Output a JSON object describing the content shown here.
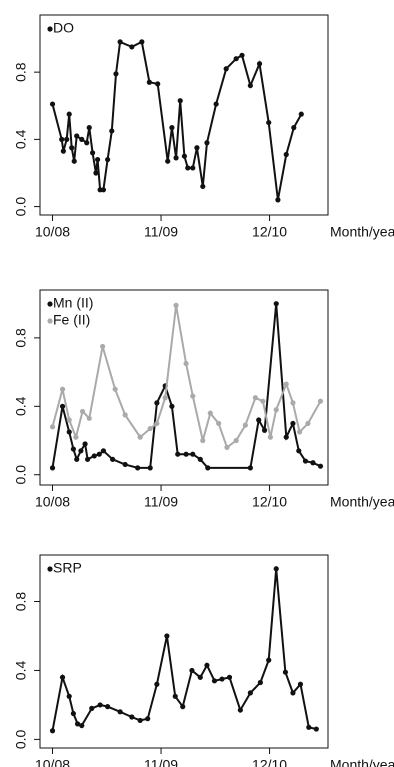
{
  "chart_data": [
    {
      "type": "line",
      "xlabel": "Month/year",
      "legend": "top-left",
      "xlim": [
        -1.5,
        33
      ],
      "xticks": [
        {
          "value": 0,
          "label": "10/08"
        },
        {
          "value": 13,
          "label": "11/09"
        },
        {
          "value": 26,
          "label": "12/10"
        }
      ],
      "ylim": [
        -0.05,
        1.14
      ],
      "yticks": [
        {
          "value": 0,
          "label": "0.0"
        },
        0.4,
        0.8
      ],
      "series": [
        {
          "name": "DO",
          "color": "#111111",
          "x": [
            0,
            1.1,
            1.3,
            1.7,
            2.0,
            2.3,
            2.6,
            2.9,
            3.5,
            4.1,
            4.4,
            4.8,
            5.2,
            5.4,
            5.7,
            6.1,
            6.6,
            7.1,
            7.6,
            8.1,
            9.5,
            10.7,
            11.6,
            12.6,
            13.8,
            14.3,
            14.8,
            15.3,
            15.8,
            16.2,
            16.8,
            17.3,
            18.0,
            18.5,
            19.6,
            20.8,
            22.0,
            22.7,
            23.7,
            24.8,
            25.9,
            27.0,
            28.0,
            28.9,
            29.8
          ],
          "values": [
            0.61,
            0.4,
            0.33,
            0.4,
            0.55,
            0.35,
            0.27,
            0.42,
            0.4,
            0.38,
            0.47,
            0.32,
            0.2,
            0.28,
            0.1,
            0.1,
            0.28,
            0.45,
            0.79,
            0.98,
            0.95,
            0.98,
            0.74,
            0.73,
            0.27,
            0.47,
            0.29,
            0.63,
            0.3,
            0.23,
            0.23,
            0.35,
            0.12,
            0.38,
            0.61,
            0.82,
            0.88,
            0.9,
            0.72,
            0.85,
            0.5,
            0.04,
            0.31,
            0.47,
            0.55
          ]
        }
      ]
    },
    {
      "type": "line",
      "xlabel": "Month/year",
      "legend": "top-left",
      "xlim": [
        -1.5,
        33
      ],
      "xticks": [
        {
          "value": 0,
          "label": "10/08"
        },
        {
          "value": 13,
          "label": "11/09"
        },
        {
          "value": 26,
          "label": "12/10"
        }
      ],
      "ylim": [
        -0.06,
        1.08
      ],
      "yticks": [
        {
          "value": 0,
          "label": "0.0"
        },
        0.4,
        0.8
      ],
      "series": [
        {
          "name": "Mn (II)",
          "color": "#111111",
          "x": [
            0,
            1.2,
            2.0,
            2.5,
            2.9,
            3.4,
            3.9,
            4.2,
            5.0,
            5.6,
            6.1,
            7.2,
            8.7,
            10.2,
            11.7,
            12.5,
            13.5,
            14.3,
            15.0,
            16.0,
            16.8,
            17.7,
            18.6,
            23.7,
            24.7,
            25.4,
            26.8,
            28.0,
            28.8,
            29.5,
            30.3,
            31.2,
            32.1
          ],
          "values": [
            0.04,
            0.4,
            0.25,
            0.15,
            0.09,
            0.14,
            0.18,
            0.09,
            0.11,
            0.12,
            0.14,
            0.09,
            0.06,
            0.04,
            0.04,
            0.42,
            0.52,
            0.4,
            0.12,
            0.12,
            0.12,
            0.09,
            0.04,
            0.04,
            0.32,
            0.26,
            1.0,
            0.22,
            0.3,
            0.14,
            0.08,
            0.07,
            0.05
          ]
        },
        {
          "name": "Fe (II)",
          "color": "#aaaaaa",
          "x": [
            0,
            1.2,
            2.0,
            2.8,
            3.6,
            4.4,
            6.0,
            7.5,
            8.7,
            10.5,
            11.7,
            12.5,
            13.5,
            14.8,
            16.0,
            16.8,
            18.0,
            18.9,
            19.9,
            20.9,
            22.0,
            23.1,
            24.3,
            25.2,
            26.1,
            26.8,
            28.0,
            28.8,
            29.6,
            30.6,
            32.1
          ],
          "values": [
            0.28,
            0.5,
            0.32,
            0.22,
            0.37,
            0.33,
            0.75,
            0.5,
            0.35,
            0.22,
            0.27,
            0.3,
            0.45,
            0.99,
            0.65,
            0.46,
            0.2,
            0.36,
            0.3,
            0.16,
            0.2,
            0.29,
            0.45,
            0.43,
            0.22,
            0.38,
            0.53,
            0.42,
            0.25,
            0.3,
            0.43
          ]
        }
      ]
    },
    {
      "type": "line",
      "xlabel": "Month/year",
      "legend": "top-left",
      "xlim": [
        -1.5,
        33
      ],
      "xticks": [
        {
          "value": 0,
          "label": "10/08"
        },
        {
          "value": 13,
          "label": "11/09"
        },
        {
          "value": 26,
          "label": "12/10"
        }
      ],
      "ylim": [
        -0.05,
        1.07
      ],
      "yticks": [
        {
          "value": 0,
          "label": "0.0"
        },
        0.4,
        0.8
      ],
      "series": [
        {
          "name": "SRP",
          "color": "#111111",
          "x": [
            0,
            1.2,
            2.0,
            2.5,
            3.0,
            3.5,
            4.7,
            5.7,
            6.6,
            8.1,
            9.5,
            10.5,
            11.4,
            12.5,
            13.7,
            14.7,
            15.6,
            16.7,
            17.7,
            18.5,
            19.4,
            20.3,
            21.2,
            22.5,
            23.7,
            24.9,
            25.9,
            26.8,
            27.9,
            28.8,
            29.7,
            30.7,
            31.6
          ],
          "values": [
            0.05,
            0.36,
            0.25,
            0.15,
            0.09,
            0.08,
            0.18,
            0.2,
            0.19,
            0.16,
            0.13,
            0.11,
            0.12,
            0.32,
            0.6,
            0.25,
            0.19,
            0.4,
            0.36,
            0.43,
            0.34,
            0.35,
            0.36,
            0.17,
            0.27,
            0.33,
            0.46,
            0.99,
            0.39,
            0.27,
            0.32,
            0.07,
            0.06
          ]
        }
      ]
    }
  ]
}
